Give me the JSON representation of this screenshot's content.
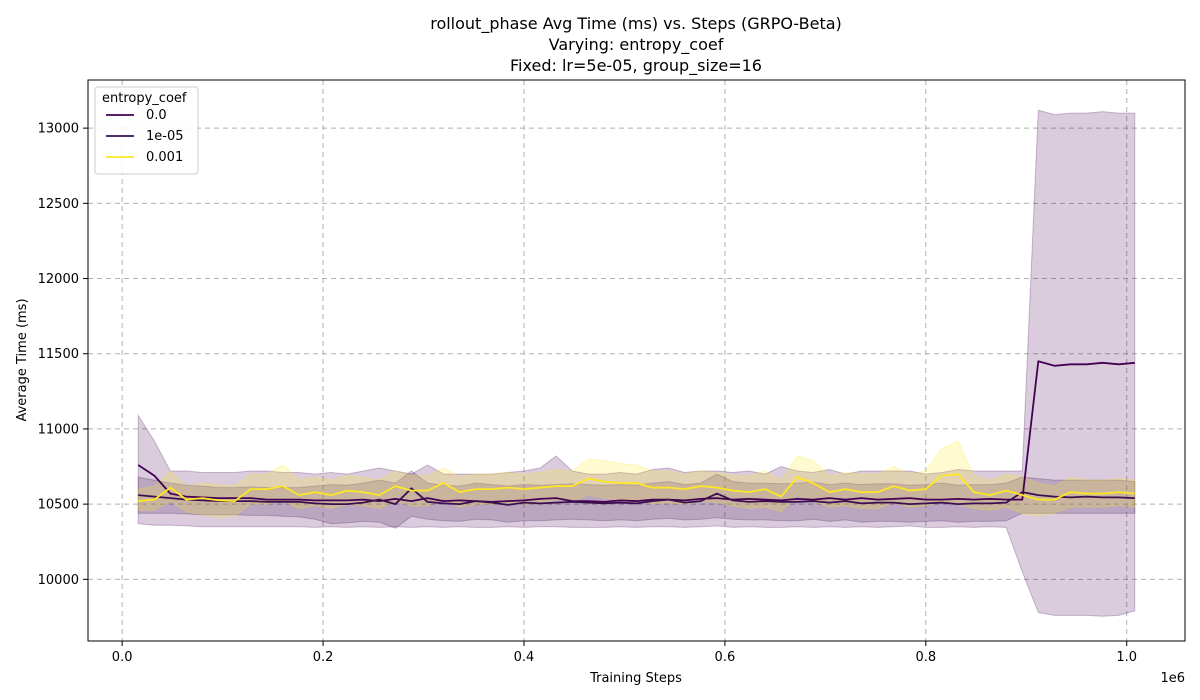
{
  "chart_data": {
    "type": "line",
    "title_lines": [
      "rollout_phase Avg Time (ms) vs. Steps (GRPO-Beta)",
      "Varying: entropy_coef",
      "Fixed: lr=5e-05, group_size=16"
    ],
    "xlabel": "Training Steps",
    "ylabel": "Average Time (ms)",
    "x_offset_label": "1e6",
    "xlim": [
      -0.034,
      1.058
    ],
    "ylim": [
      9590,
      13320
    ],
    "x_ticks": [
      0.0,
      0.2,
      0.4,
      0.6,
      0.8,
      1.0
    ],
    "x_tick_labels": [
      "0.0",
      "0.2",
      "0.4",
      "0.6",
      "0.8",
      "1.0"
    ],
    "y_ticks": [
      10000,
      10500,
      11000,
      11500,
      12000,
      12500,
      13000
    ],
    "y_tick_labels": [
      "10000",
      "10500",
      "11000",
      "11500",
      "12000",
      "12500",
      "13000"
    ],
    "grid": true,
    "legend": {
      "title": "entropy_coef",
      "position": "top-left",
      "entries": [
        "0.0",
        "1e-05",
        "0.001"
      ]
    },
    "x": [
      0.016,
      0.032,
      0.048,
      0.064,
      0.08,
      0.096,
      0.112,
      0.128,
      0.144,
      0.16,
      0.176,
      0.192,
      0.208,
      0.224,
      0.24,
      0.256,
      0.272,
      0.288,
      0.304,
      0.32,
      0.336,
      0.352,
      0.368,
      0.384,
      0.4,
      0.416,
      0.432,
      0.448,
      0.464,
      0.48,
      0.496,
      0.512,
      0.528,
      0.544,
      0.56,
      0.576,
      0.592,
      0.608,
      0.624,
      0.64,
      0.656,
      0.672,
      0.688,
      0.704,
      0.72,
      0.736,
      0.752,
      0.768,
      0.784,
      0.8,
      0.816,
      0.832,
      0.848,
      0.864,
      0.88,
      0.896,
      0.912,
      0.928,
      0.944,
      0.96,
      0.976,
      0.992,
      1.008
    ],
    "series": [
      {
        "name": "0.0",
        "color": "#440154",
        "values": [
          10760,
          10690,
          10570,
          10550,
          10545,
          10540,
          10540,
          10540,
          10530,
          10530,
          10530,
          10525,
          10525,
          10525,
          10530,
          10520,
          10535,
          10520,
          10540,
          10520,
          10525,
          10520,
          10515,
          10520,
          10525,
          10535,
          10540,
          10520,
          10520,
          10515,
          10525,
          10520,
          10530,
          10530,
          10525,
          10535,
          10540,
          10530,
          10535,
          10530,
          10525,
          10535,
          10530,
          10540,
          10530,
          10540,
          10530,
          10535,
          10540,
          10530,
          10530,
          10535,
          10530,
          10535,
          10530,
          10530,
          11450,
          11420,
          11430,
          11430,
          11440,
          11430,
          11440
        ],
        "band_low": [
          10370,
          10360,
          10360,
          10355,
          10350,
          10350,
          10350,
          10350,
          10350,
          10350,
          10350,
          10345,
          10350,
          10345,
          10350,
          10345,
          10350,
          10345,
          10350,
          10345,
          10350,
          10345,
          10345,
          10350,
          10345,
          10350,
          10350,
          10345,
          10345,
          10345,
          10350,
          10345,
          10350,
          10350,
          10345,
          10350,
          10355,
          10345,
          10350,
          10345,
          10345,
          10350,
          10345,
          10350,
          10345,
          10350,
          10345,
          10350,
          10355,
          10345,
          10345,
          10350,
          10345,
          10350,
          10345,
          10050,
          9780,
          9760,
          9760,
          9760,
          9755,
          9760,
          9790
        ],
        "band_high": [
          11090,
          10920,
          10720,
          10720,
          10710,
          10710,
          10710,
          10720,
          10720,
          10710,
          10710,
          10700,
          10710,
          10700,
          10720,
          10740,
          10720,
          10700,
          10760,
          10700,
          10700,
          10700,
          10700,
          10710,
          10720,
          10740,
          10820,
          10720,
          10700,
          10700,
          10710,
          10700,
          10730,
          10740,
          10710,
          10720,
          10720,
          10710,
          10720,
          10700,
          10750,
          10720,
          10710,
          10730,
          10700,
          10720,
          10720,
          10720,
          10720,
          10700,
          10710,
          10730,
          10720,
          10720,
          10720,
          10720,
          13120,
          13090,
          13100,
          13100,
          13110,
          13100,
          13100
        ]
      },
      {
        "name": "1e-05",
        "color": "#3b0f4f",
        "values": [
          10560,
          10550,
          10540,
          10530,
          10525,
          10520,
          10520,
          10520,
          10515,
          10515,
          10515,
          10505,
          10500,
          10500,
          10510,
          10530,
          10500,
          10605,
          10515,
          10505,
          10500,
          10520,
          10510,
          10495,
          10510,
          10505,
          10510,
          10515,
          10510,
          10505,
          10510,
          10505,
          10520,
          10530,
          10510,
          10520,
          10570,
          10525,
          10515,
          10520,
          10515,
          10515,
          10520,
          10510,
          10520,
          10505,
          10510,
          10510,
          10500,
          10505,
          10510,
          10500,
          10505,
          10505,
          10510,
          10580,
          10560,
          10550,
          10545,
          10550,
          10545,
          10545,
          10540
        ],
        "band_low": [
          10440,
          10440,
          10440,
          10435,
          10430,
          10430,
          10430,
          10425,
          10425,
          10420,
          10415,
          10400,
          10370,
          10375,
          10385,
          10380,
          10340,
          10420,
          10400,
          10390,
          10385,
          10400,
          10395,
          10380,
          10390,
          10390,
          10395,
          10400,
          10395,
          10390,
          10395,
          10390,
          10400,
          10405,
          10395,
          10400,
          10410,
          10400,
          10395,
          10395,
          10390,
          10390,
          10400,
          10385,
          10395,
          10380,
          10385,
          10385,
          10380,
          10385,
          10390,
          10380,
          10385,
          10385,
          10390,
          10440,
          10440,
          10440,
          10440,
          10440,
          10440,
          10440,
          10440
        ],
        "band_high": [
          10680,
          10660,
          10640,
          10625,
          10620,
          10610,
          10610,
          10615,
          10610,
          10610,
          10610,
          10620,
          10630,
          10625,
          10640,
          10660,
          10640,
          10720,
          10640,
          10625,
          10620,
          10640,
          10630,
          10620,
          10630,
          10625,
          10630,
          10635,
          10630,
          10625,
          10630,
          10625,
          10640,
          10650,
          10630,
          10640,
          10700,
          10650,
          10640,
          10640,
          10635,
          10640,
          10645,
          10630,
          10640,
          10630,
          10635,
          10635,
          10625,
          10630,
          10640,
          10625,
          10630,
          10630,
          10640,
          10680,
          10670,
          10660,
          10660,
          10660,
          10660,
          10660,
          10650
        ]
      },
      {
        "name": "0.001",
        "color": "#fde725",
        "values": [
          10520,
          10530,
          10610,
          10530,
          10540,
          10525,
          10520,
          10600,
          10600,
          10620,
          10560,
          10580,
          10560,
          10590,
          10580,
          10560,
          10620,
          10590,
          10590,
          10640,
          10580,
          10600,
          10600,
          10610,
          10600,
          10610,
          10620,
          10620,
          10670,
          10650,
          10640,
          10640,
          10610,
          10610,
          10600,
          10620,
          10610,
          10590,
          10580,
          10600,
          10550,
          10680,
          10640,
          10580,
          10600,
          10580,
          10580,
          10620,
          10590,
          10600,
          10690,
          10700,
          10580,
          10560,
          10590,
          10560,
          10530,
          10530,
          10580,
          10570,
          10570,
          10580,
          10570
        ],
        "band_low": [
          10460,
          10460,
          10520,
          10450,
          10430,
          10410,
          10420,
          10500,
          10500,
          10520,
          10470,
          10490,
          10470,
          10500,
          10490,
          10470,
          10520,
          10490,
          10490,
          10540,
          10480,
          10500,
          10500,
          10510,
          10500,
          10510,
          10530,
          10520,
          10560,
          10540,
          10530,
          10530,
          10500,
          10510,
          10500,
          10520,
          10510,
          10490,
          10470,
          10480,
          10450,
          10560,
          10520,
          10480,
          10490,
          10470,
          10470,
          10510,
          10480,
          10490,
          10520,
          10500,
          10470,
          10460,
          10480,
          10440,
          10420,
          10440,
          10480,
          10480,
          10480,
          10490,
          10480
        ],
        "band_high": [
          10600,
          10620,
          10720,
          10620,
          10640,
          10630,
          10620,
          10700,
          10700,
          10760,
          10660,
          10680,
          10660,
          10690,
          10680,
          10660,
          10720,
          10690,
          10690,
          10740,
          10680,
          10700,
          10700,
          10710,
          10700,
          10710,
          10730,
          10720,
          10800,
          10790,
          10770,
          10760,
          10720,
          10720,
          10700,
          10720,
          10710,
          10690,
          10690,
          10720,
          10660,
          10820,
          10790,
          10690,
          10710,
          10700,
          10700,
          10750,
          10700,
          10720,
          10870,
          10920,
          10690,
          10660,
          10700,
          10680,
          10640,
          10620,
          10680,
          10660,
          10660,
          10670,
          10660
        ]
      }
    ]
  }
}
